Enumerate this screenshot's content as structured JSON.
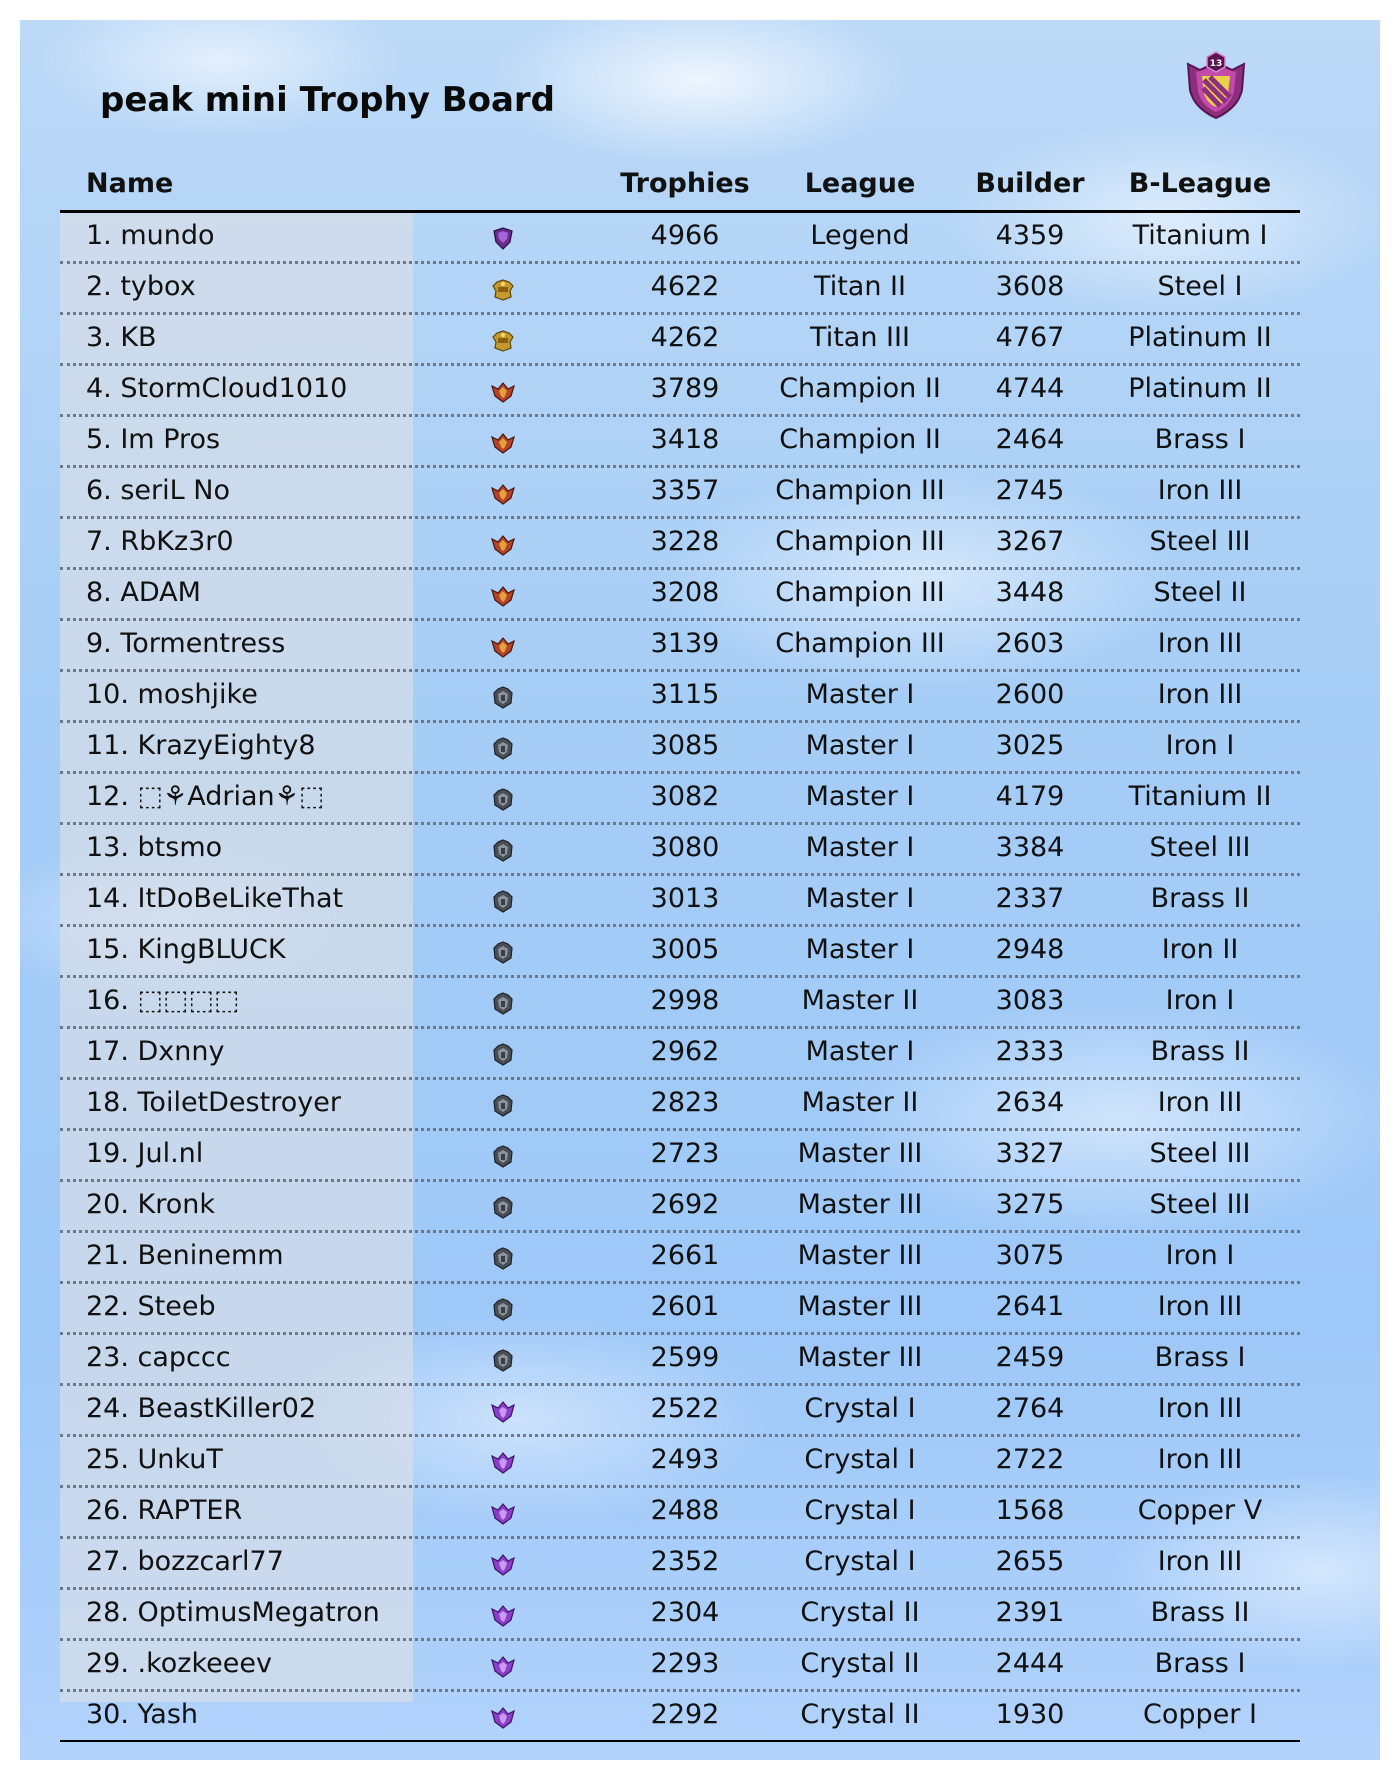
{
  "title": "peak mini Trophy Board",
  "clan_badge_level": "13",
  "headers": {
    "name": "Name",
    "trophies": "Trophies",
    "league": "League",
    "builder": "Builder",
    "bleague": "B-League"
  },
  "league_icon_colors": {
    "legend": "#6a2c91",
    "titan": "#c49a2c",
    "champion": "#b5422a",
    "master": "#4a4f57",
    "crystal": "#8a3fc9"
  },
  "rows": [
    {
      "label": "1.  mundo",
      "icon": "legend-league-icon",
      "trophies": "4966",
      "league": "Legend",
      "builder": "4359",
      "bleague": "Titanium I"
    },
    {
      "label": "2.  tybox",
      "icon": "titan-league-icon",
      "trophies": "4622",
      "league": "Titan II",
      "builder": "3608",
      "bleague": "Steel I"
    },
    {
      "label": "3.  KB",
      "icon": "titan-league-icon",
      "trophies": "4262",
      "league": "Titan III",
      "builder": "4767",
      "bleague": "Platinum II"
    },
    {
      "label": "4.  StormCloud1010",
      "icon": "champion-league-icon",
      "trophies": "3789",
      "league": "Champion II",
      "builder": "4744",
      "bleague": "Platinum II"
    },
    {
      "label": "5.  Im Pros",
      "icon": "champion-league-icon",
      "trophies": "3418",
      "league": "Champion II",
      "builder": "2464",
      "bleague": "Brass I"
    },
    {
      "label": "6.  seriL No",
      "icon": "champion-league-icon",
      "trophies": "3357",
      "league": "Champion III",
      "builder": "2745",
      "bleague": "Iron III"
    },
    {
      "label": "7.  RbKz3r0",
      "icon": "champion-league-icon",
      "trophies": "3228",
      "league": "Champion III",
      "builder": "3267",
      "bleague": "Steel III"
    },
    {
      "label": "8.  ADAM",
      "icon": "champion-league-icon",
      "trophies": "3208",
      "league": "Champion III",
      "builder": "3448",
      "bleague": "Steel II"
    },
    {
      "label": "9.  Tormentress",
      "icon": "champion-league-icon",
      "trophies": "3139",
      "league": "Champion III",
      "builder": "2603",
      "bleague": "Iron III"
    },
    {
      "label": "10. moshjike",
      "icon": "master-league-icon",
      "trophies": "3115",
      "league": "Master I",
      "builder": "2600",
      "bleague": "Iron III"
    },
    {
      "label": "11. KrazyEighty8",
      "icon": "master-league-icon",
      "trophies": "3085",
      "league": "Master I",
      "builder": "3025",
      "bleague": "Iron I"
    },
    {
      "label": "12. ⬚⚘Adrian⚘⬚",
      "icon": "master-league-icon",
      "trophies": "3082",
      "league": "Master I",
      "builder": "4179",
      "bleague": "Titanium II"
    },
    {
      "label": "13. btsmo",
      "icon": "master-league-icon",
      "trophies": "3080",
      "league": "Master I",
      "builder": "3384",
      "bleague": "Steel III"
    },
    {
      "label": "14. ItDoBeLikeThat",
      "icon": "master-league-icon",
      "trophies": "3013",
      "league": "Master I",
      "builder": "2337",
      "bleague": "Brass II"
    },
    {
      "label": "15. KingBLUCK",
      "icon": "master-league-icon",
      "trophies": "3005",
      "league": "Master I",
      "builder": "2948",
      "bleague": "Iron II"
    },
    {
      "label": "16. ⬚⬚⬚⬚",
      "icon": "master-league-icon",
      "trophies": "2998",
      "league": "Master II",
      "builder": "3083",
      "bleague": "Iron I"
    },
    {
      "label": "17. Dxnny",
      "icon": "master-league-icon",
      "trophies": "2962",
      "league": "Master I",
      "builder": "2333",
      "bleague": "Brass II"
    },
    {
      "label": "18. ToiletDestroyer",
      "icon": "master-league-icon",
      "trophies": "2823",
      "league": "Master II",
      "builder": "2634",
      "bleague": "Iron III"
    },
    {
      "label": "19. Jul.nl",
      "icon": "master-league-icon",
      "trophies": "2723",
      "league": "Master III",
      "builder": "3327",
      "bleague": "Steel III"
    },
    {
      "label": "20. Kronk",
      "icon": "master-league-icon",
      "trophies": "2692",
      "league": "Master III",
      "builder": "3275",
      "bleague": "Steel III"
    },
    {
      "label": "21. Beninemm",
      "icon": "master-league-icon",
      "trophies": "2661",
      "league": "Master III",
      "builder": "3075",
      "bleague": "Iron I"
    },
    {
      "label": "22. Steeb",
      "icon": "master-league-icon",
      "trophies": "2601",
      "league": "Master III",
      "builder": "2641",
      "bleague": "Iron III"
    },
    {
      "label": "23. capccc",
      "icon": "master-league-icon",
      "trophies": "2599",
      "league": "Master III",
      "builder": "2459",
      "bleague": "Brass I"
    },
    {
      "label": "24. BeastKiller02",
      "icon": "crystal-league-icon",
      "trophies": "2522",
      "league": "Crystal I",
      "builder": "2764",
      "bleague": "Iron III"
    },
    {
      "label": "25. UnkuT",
      "icon": "crystal-league-icon",
      "trophies": "2493",
      "league": "Crystal I",
      "builder": "2722",
      "bleague": "Iron III"
    },
    {
      "label": "26. RAPTER",
      "icon": "crystal-league-icon",
      "trophies": "2488",
      "league": "Crystal I",
      "builder": "1568",
      "bleague": "Copper V"
    },
    {
      "label": "27. bozzcarl77",
      "icon": "crystal-league-icon",
      "trophies": "2352",
      "league": "Crystal I",
      "builder": "2655",
      "bleague": "Iron III"
    },
    {
      "label": "28. OptimusMegatron",
      "icon": "crystal-league-icon",
      "trophies": "2304",
      "league": "Crystal II",
      "builder": "2391",
      "bleague": "Brass II"
    },
    {
      "label": "29. .kozkeeev",
      "icon": "crystal-league-icon",
      "trophies": "2293",
      "league": "Crystal II",
      "builder": "2444",
      "bleague": "Brass I"
    },
    {
      "label": "30. Yash",
      "icon": "crystal-league-icon",
      "trophies": "2292",
      "league": "Crystal II",
      "builder": "1930",
      "bleague": "Copper I"
    }
  ]
}
